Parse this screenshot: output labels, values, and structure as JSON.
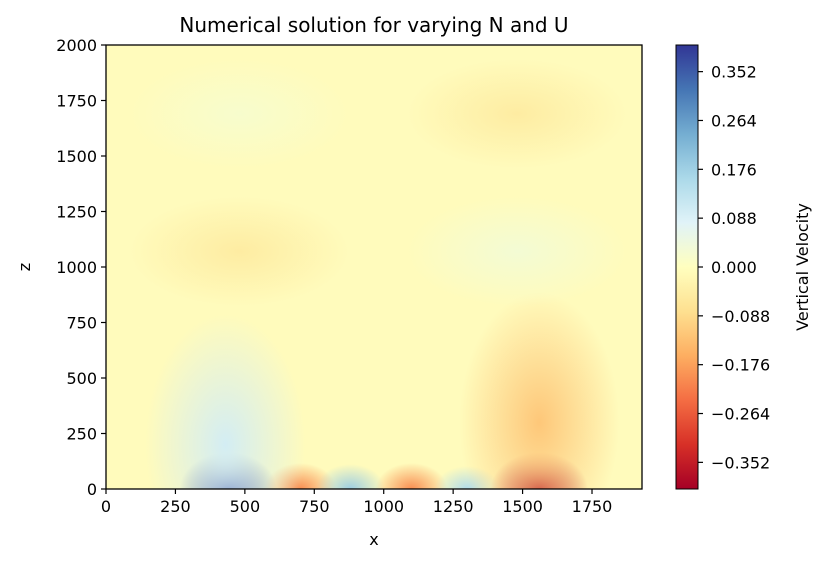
{
  "chart_data": {
    "type": "heatmap",
    "title": "Numerical solution for varying N and U",
    "xlabel": "x",
    "ylabel": "z",
    "xlim": [
      0,
      1930
    ],
    "ylim": [
      0,
      2000
    ],
    "xticks": [
      "0",
      "250",
      "500",
      "750",
      "1000",
      "1250",
      "1500",
      "1750"
    ],
    "yticks": [
      "0",
      "250",
      "500",
      "750",
      "1000",
      "1250",
      "1500",
      "1750",
      "2000"
    ],
    "colorbar": {
      "label": "Vertical Velocity",
      "range": [
        -0.4,
        0.4
      ],
      "ticks": [
        "0.352",
        "0.264",
        "0.176",
        "0.088",
        "0.000",
        "−0.088",
        "−0.176",
        "−0.264",
        "−0.352"
      ],
      "colormap": "RdYlBu"
    },
    "features": [
      {
        "x": 440,
        "z": 0,
        "value": 0.38
      },
      {
        "x": 700,
        "z": 0,
        "value": -0.2
      },
      {
        "x": 880,
        "z": 0,
        "value": 0.18
      },
      {
        "x": 1100,
        "z": 0,
        "value": -0.2
      },
      {
        "x": 1300,
        "z": 0,
        "value": 0.15
      },
      {
        "x": 1560,
        "z": 0,
        "value": -0.38
      },
      {
        "x": 430,
        "z": 200,
        "value": 0.1
      },
      {
        "x": 1560,
        "z": 300,
        "value": -0.12
      },
      {
        "x": 480,
        "z": 1070,
        "value": -0.05
      },
      {
        "x": 1480,
        "z": 1070,
        "value": 0.03
      },
      {
        "x": 480,
        "z": 1690,
        "value": 0.02
      },
      {
        "x": 1480,
        "z": 1690,
        "value": -0.05
      }
    ]
  }
}
